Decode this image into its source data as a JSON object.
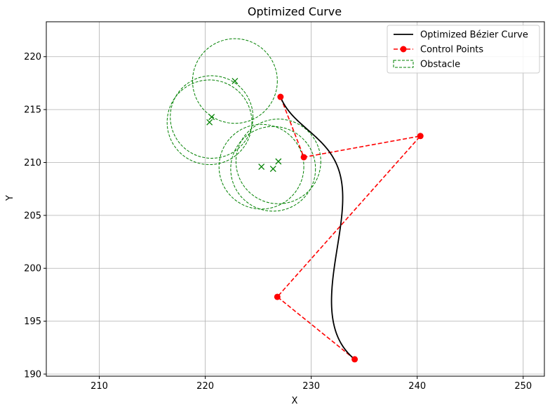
{
  "chart_data": {
    "type": "scatter",
    "title": "Optimized Curve",
    "xlabel": "X",
    "ylabel": "Y",
    "xlim": [
      205,
      252
    ],
    "ylim": [
      189.8,
      223.3
    ],
    "x_ticks": [
      210,
      220,
      230,
      240,
      250
    ],
    "y_ticks": [
      190,
      195,
      200,
      205,
      210,
      215,
      220
    ],
    "grid": true,
    "legend_position": "top-right",
    "legend": [
      {
        "label": "Optimized Bézier Curve",
        "kind": "line",
        "color": "#000000"
      },
      {
        "label": "Control Points",
        "kind": "dashed-line-marker",
        "color": "#ff0000"
      },
      {
        "label": "Obstacle",
        "kind": "dashed-patch",
        "color": "#008000"
      }
    ],
    "control_points": [
      {
        "x": 234.1,
        "y": 191.4
      },
      {
        "x": 226.8,
        "y": 197.3
      },
      {
        "x": 240.3,
        "y": 212.5
      },
      {
        "x": 229.3,
        "y": 210.5
      },
      {
        "x": 227.1,
        "y": 216.2
      }
    ],
    "obstacles": [
      {
        "cx": 222.8,
        "cy": 217.7,
        "r": 4.0
      },
      {
        "cx": 220.6,
        "cy": 214.3,
        "r": 3.9
      },
      {
        "cx": 220.4,
        "cy": 213.8,
        "r": 4.0
      },
      {
        "cx": 226.9,
        "cy": 210.1,
        "r": 4.0
      },
      {
        "cx": 225.3,
        "cy": 209.6,
        "r": 4.0
      },
      {
        "cx": 226.4,
        "cy": 209.4,
        "r": 4.0
      }
    ],
    "colors": {
      "curve": "#000000",
      "control": "#ff0000",
      "obstacle": "#008000",
      "grid": "#b0b0b0"
    }
  }
}
